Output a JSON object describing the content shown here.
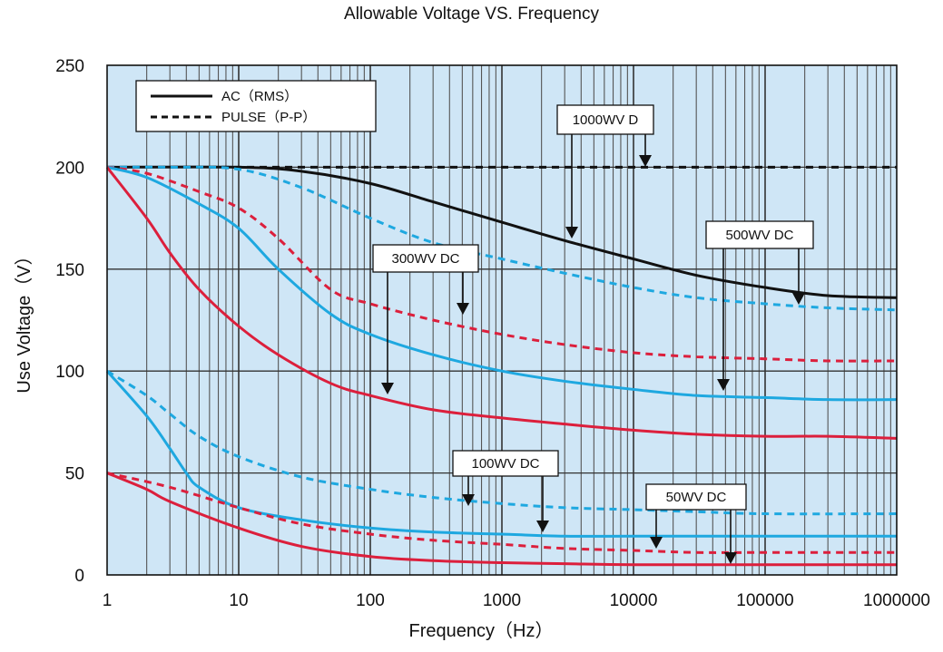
{
  "chart_data": {
    "type": "line",
    "title": "Allowable Voltage VS. Frequency",
    "xlabel": "Frequency（Hz）",
    "ylabel": "Use Voltage（V）",
    "x_scale": "log",
    "xlim": [
      1,
      1000000
    ],
    "ylim": [
      0,
      250
    ],
    "x_ticks": [
      "1",
      "10",
      "100",
      "1000",
      "10000",
      "100000",
      "1000000"
    ],
    "y_ticks": [
      "0",
      "50",
      "100",
      "150",
      "200",
      "250"
    ],
    "grid": true,
    "legend_position": "top-left",
    "legend": [
      {
        "label": "AC（RMS）",
        "style": "solid"
      },
      {
        "label": "PULSE（P-P）",
        "style": "dashed"
      }
    ],
    "colors": {
      "black": "#111111",
      "red": "#dc1f3c",
      "blue": "#1ea8e0",
      "plot_bg": "#cfe6f6"
    },
    "annotations": [
      {
        "label": "1000WV D"
      },
      {
        "label": "500WV DC"
      },
      {
        "label": "300WV DC"
      },
      {
        "label": "100WV DC"
      },
      {
        "label": "50WV DC"
      }
    ],
    "series": [
      {
        "color": "black",
        "style": "dashed",
        "x": [
          1,
          10,
          100,
          1000,
          10000,
          100000,
          1000000
        ],
        "y": [
          200,
          200,
          200,
          200,
          200,
          200,
          200
        ]
      },
      {
        "color": "black",
        "style": "solid",
        "x": [
          1,
          10,
          30,
          100,
          300,
          1000,
          3000,
          10000,
          30000,
          100000,
          300000,
          1000000
        ],
        "y": [
          200,
          200,
          198,
          192,
          183,
          173,
          164,
          155,
          147,
          141,
          137,
          136
        ]
      },
      {
        "color": "blue",
        "style": "dashed",
        "x": [
          1,
          3,
          10,
          30,
          100,
          300,
          1000,
          3000,
          10000,
          30000,
          100000,
          300000,
          1000000
        ],
        "y": [
          200,
          200,
          199,
          190,
          175,
          163,
          155,
          148,
          141,
          136,
          133,
          131,
          130
        ]
      },
      {
        "color": "red",
        "style": "dashed",
        "x": [
          1,
          2,
          5,
          10,
          20,
          50,
          100,
          300,
          1000,
          3000,
          10000,
          30000,
          100000,
          300000,
          1000000
        ],
        "y": [
          200,
          197,
          188,
          180,
          165,
          140,
          133,
          125,
          118,
          113,
          109,
          107,
          106,
          105,
          105
        ]
      },
      {
        "color": "blue",
        "style": "solid",
        "x": [
          1,
          2,
          5,
          10,
          20,
          50,
          100,
          300,
          1000,
          3000,
          10000,
          30000,
          100000,
          300000,
          1000000
        ],
        "y": [
          200,
          195,
          182,
          170,
          150,
          128,
          118,
          108,
          100,
          95,
          91,
          88,
          87,
          86,
          86
        ]
      },
      {
        "color": "red",
        "style": "solid",
        "x": [
          1,
          2,
          3,
          5,
          10,
          20,
          50,
          100,
          300,
          1000,
          3000,
          10000,
          30000,
          100000,
          300000,
          1000000
        ],
        "y": [
          200,
          175,
          158,
          140,
          122,
          108,
          94,
          88,
          81,
          77,
          74,
          71,
          69,
          68,
          68,
          67
        ]
      },
      {
        "color": "blue",
        "style": "dashed",
        "x": [
          1,
          2,
          3,
          5,
          10,
          30,
          100,
          300,
          1000,
          3000,
          10000,
          30000,
          100000,
          1000000
        ],
        "y": [
          100,
          88,
          79,
          68,
          58,
          48,
          42,
          38,
          35,
          33,
          32,
          31,
          30,
          30
        ]
      },
      {
        "color": "blue",
        "style": "solid",
        "x": [
          1,
          2,
          3,
          4,
          5,
          10,
          30,
          100,
          300,
          1000,
          3000,
          10000,
          100000,
          1000000
        ],
        "y": [
          100,
          78,
          62,
          50,
          43,
          33,
          27,
          23,
          21,
          20,
          19,
          19,
          19,
          19
        ]
      },
      {
        "color": "red",
        "style": "dashed",
        "x": [
          1,
          3,
          10,
          30,
          100,
          300,
          1000,
          3000,
          10000,
          30000,
          100000,
          1000000
        ],
        "y": [
          50,
          43,
          33,
          25,
          20,
          17,
          15,
          13,
          12,
          11,
          11,
          11
        ]
      },
      {
        "color": "red",
        "style": "solid",
        "x": [
          1,
          2,
          3,
          10,
          30,
          100,
          300,
          1000,
          3000,
          10000,
          100000,
          1000000
        ],
        "y": [
          50,
          42,
          36,
          23,
          14,
          9,
          7,
          6,
          5.5,
          5,
          5,
          5
        ]
      }
    ]
  }
}
